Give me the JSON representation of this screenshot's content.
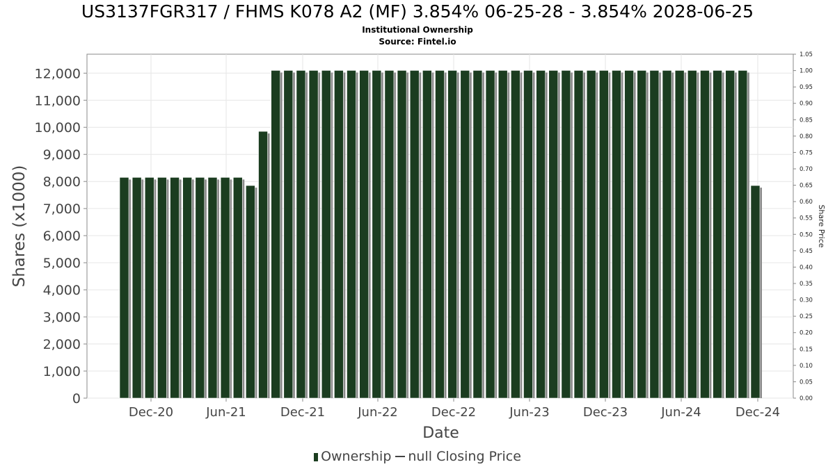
{
  "title": "US3137FGR317 / FHMS K078 A2 (MF) 3.854% 06-25-28 - 3.854% 2028-06-25",
  "subtitle": "Institutional Ownership",
  "source": "Source: Fintel.io",
  "legend": {
    "ownership": "Ownership",
    "price": "null Closing Price"
  },
  "colors": {
    "bar": "#1b3d20",
    "bar_shadow": "#8a8a8a",
    "grid": "#e6e6e6",
    "axis_text": "#444444"
  },
  "chart_data": {
    "type": "bar",
    "xlabel": "Date",
    "ylabel": "Shares (x1000)",
    "y2label": "Share Price",
    "ylim": [
      0,
      12700
    ],
    "y2lim": [
      0,
      1.05
    ],
    "yticks": [
      "0",
      "1,000",
      "2,000",
      "3,000",
      "4,000",
      "5,000",
      "6,000",
      "7,000",
      "8,000",
      "9,000",
      "10,000",
      "11,000",
      "12,000"
    ],
    "y2ticks": [
      "0.00",
      "0.05",
      "0.10",
      "0.15",
      "0.20",
      "0.25",
      "0.30",
      "0.35",
      "0.40",
      "0.45",
      "0.50",
      "0.55",
      "0.60",
      "0.65",
      "0.70",
      "0.75",
      "0.80",
      "0.85",
      "0.90",
      "0.95",
      "1.00",
      "1.05"
    ],
    "xticks": [
      "Dec-20",
      "Jun-21",
      "Dec-21",
      "Jun-22",
      "Dec-22",
      "Jun-23",
      "Dec-23",
      "Jun-24",
      "Dec-24"
    ],
    "grid": true,
    "legend_position": "bottom",
    "series": [
      {
        "name": "Ownership",
        "values": [
          8150,
          8150,
          8150,
          8150,
          8150,
          8150,
          8150,
          8150,
          8150,
          8150,
          7850,
          9850,
          12100,
          12100,
          12100,
          12100,
          12100,
          12100,
          12100,
          12100,
          12100,
          12100,
          12100,
          12100,
          12100,
          12100,
          12100,
          12100,
          12100,
          12100,
          12100,
          12100,
          12100,
          12100,
          12100,
          12100,
          12100,
          12100,
          12100,
          12100,
          12100,
          12100,
          12100,
          12100,
          12100,
          12100,
          12100,
          12100,
          12100,
          12100,
          7850
        ]
      }
    ]
  }
}
